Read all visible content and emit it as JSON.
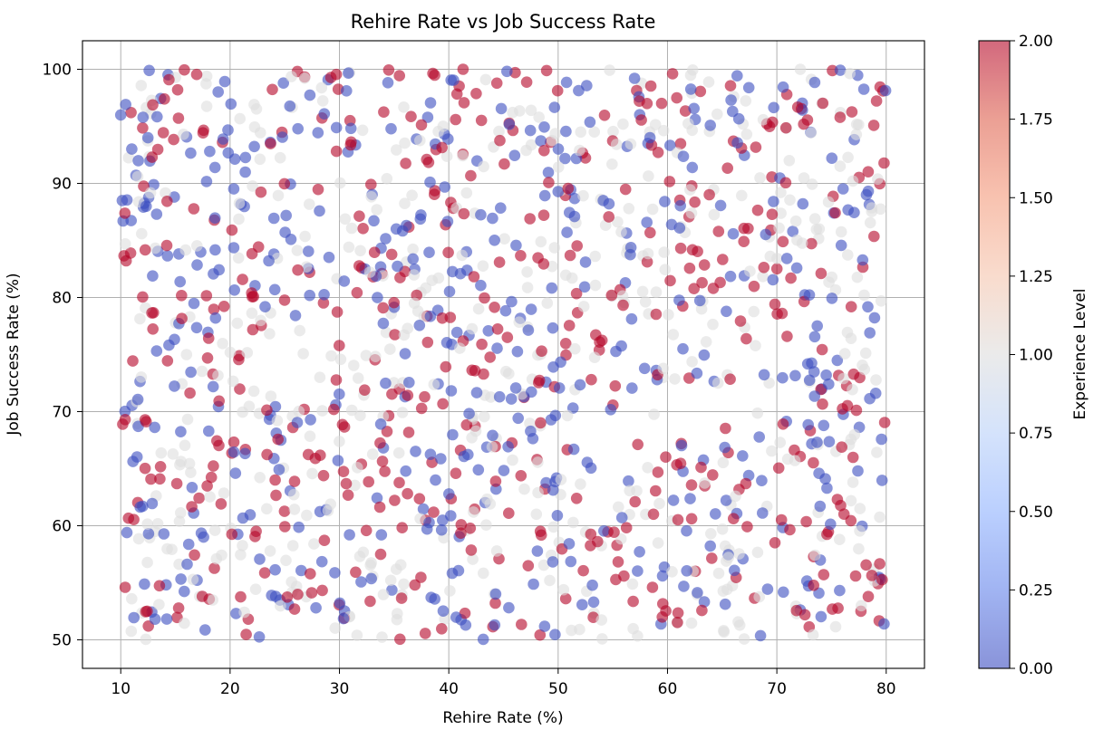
{
  "chart_data": {
    "type": "scatter",
    "title": "Rehire Rate vs Job Success Rate",
    "xlabel": "Rehire Rate (%)",
    "ylabel": "Job Success Rate (%)",
    "xlim": [
      6.5,
      83.5
    ],
    "ylim": [
      47.5,
      102.5
    ],
    "xticks": [
      10,
      20,
      30,
      40,
      50,
      60,
      70,
      80
    ],
    "yticks": [
      50,
      60,
      70,
      80,
      90,
      100
    ],
    "grid": true,
    "colorbar": {
      "label": "Experience Level",
      "cmap": "coolwarm",
      "range": [
        0,
        2
      ],
      "ticks": [
        "0.00",
        "0.25",
        "0.50",
        "0.75",
        "1.00",
        "1.25",
        "1.50",
        "1.75",
        "2.00"
      ]
    },
    "colors": {
      "level_0": "#3b4cc0",
      "level_1": "#dddddd",
      "level_2": "#b40426"
    },
    "point_alpha": 0.6,
    "series": [
      {
        "name": "Experience Level 0",
        "level": 0,
        "approx_count": 500,
        "x_range": [
          10,
          80
        ],
        "y_range": [
          50,
          100
        ]
      },
      {
        "name": "Experience Level 1",
        "level": 1,
        "approx_count": 500,
        "x_range": [
          10,
          80
        ],
        "y_range": [
          50,
          100
        ]
      },
      {
        "name": "Experience Level 2",
        "level": 2,
        "approx_count": 500,
        "x_range": [
          10,
          80
        ],
        "y_range": [
          50,
          100
        ]
      }
    ],
    "sample_points": [
      {
        "x": 10.0,
        "y": 96.0,
        "level": 0
      },
      {
        "x": 12.6,
        "y": 99.9,
        "level": 0
      },
      {
        "x": 15.2,
        "y": 98.2,
        "level": 2
      },
      {
        "x": 41.3,
        "y": 100.0,
        "level": 2
      },
      {
        "x": 79.7,
        "y": 98.1,
        "level": 2
      },
      {
        "x": 79.8,
        "y": 51.4,
        "level": 0
      },
      {
        "x": 10.4,
        "y": 54.6,
        "level": 2
      },
      {
        "x": 44.2,
        "y": 51.3,
        "level": 0
      }
    ]
  }
}
